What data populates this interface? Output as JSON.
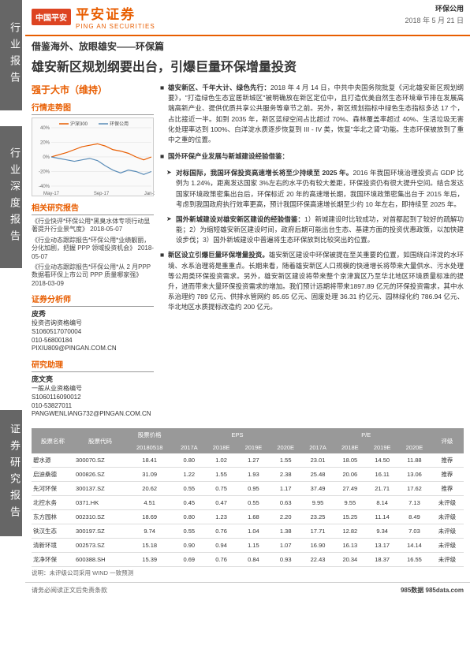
{
  "header": {
    "logo_red": "中国平安",
    "logo_cn": "平安证券",
    "logo_en": "PING AN SECURITIES",
    "category": "环保公用",
    "date": "2018 年 5 月 21 日"
  },
  "sidebar": {
    "s1": "行业报告",
    "s2": "行业深度报告",
    "s3": "证券研究报告"
  },
  "title": {
    "sub": "借鉴海外、放眼雄安——环保篇",
    "main": "雄安新区规划纲要出台，引爆巨量环保增量投资"
  },
  "left": {
    "rating": "强于大市（维持）",
    "chart_h": "行情走势图",
    "chart": {
      "series": [
        "沪深300",
        "环保公用"
      ],
      "colors": [
        "#e85d00",
        "#5b8db8"
      ],
      "months": [
        "May-17",
        "Sep-17",
        "Jan-18"
      ],
      "ylim": [
        -40,
        40
      ],
      "yticks": [
        -40,
        -20,
        0,
        20,
        40
      ],
      "hs300": [
        0,
        3,
        6,
        10,
        14,
        16,
        18,
        15,
        10,
        8,
        5,
        0,
        -4,
        0
      ],
      "env": [
        0,
        -2,
        -4,
        -6,
        -4,
        -2,
        -5,
        -12,
        -18,
        -22,
        -18,
        -20,
        -24,
        -20
      ]
    },
    "reports_h": "相关研究报告",
    "reports": [
      "《行业快评*环保公用*黑臭水体专项行动显著提升行业景气度》  2018-05-07",
      "《行业动态跟踪报告*环保公用*业绩靓丽，分化加剧，把握 PPP 领域投资机会》  2018-05-07",
      "《行业动态跟踪报告*环保公用*从 2 月PPP 数据看环保上市公司 PPP 质量哪家强》  2018-03-09"
    ],
    "analyst_h": "证券分析师",
    "analyst1": {
      "name": "皮秀",
      "lines": [
        "投资咨询资格编号",
        "S1060517070004",
        "010-56800184",
        "PIXIU809@PINGAN.COM.CN"
      ]
    },
    "assist_h": "研究助理",
    "analyst2": {
      "name": "庞文亮",
      "lines": [
        "一般从业资格编号",
        "S1060116090012",
        "010-53827011",
        "PANGWENLIANG732@PINGAN.COM.CN"
      ]
    }
  },
  "right": {
    "p1": {
      "b": "雄安新区、千年大计、绿色先行：",
      "t": "2018 年 4 月 14 日，中共中央国务院批复《河北雄安新区规划纲要》，\"打造绿色生态宜居新城区\"被明确放在新区定位中，且打造优美自然生态环境章节排在发展高端高新产业、提供优质共享公共服务等章节之前。另外，新区规划指标中绿色生态指标多达 17 个，占比接近一半。如到 2035 年，新区蓝绿空间占比超过 70%、森林覆盖率超过 40%、生活垃圾无害化处理率达到 100%、白洋淀水质逐步恢复到 III - IV 类，恢复\"华北之肾\"功能。生态环保被放到了重中之重的位置。"
    },
    "p2": {
      "b": "国外环保产业发展与新城建设经验借鉴："
    },
    "p2a": {
      "b": "对标国际，我国环保投资高速增长将至少持续至 2025 年。",
      "t": "2016 年我国环境治理投资占 GDP 比例为 1.24%，距离发达国家 3%左右的水平仍有较大差距，环保投资仍有很大提升空间。结合发达国家环境政策密集出台后，环保标近 20 年的高速增长期，我国环境政策密集出台于 2015 年后，考虑到我国政府执行效率更高，预计我国环保高速增长期至少约 10 年左右，即持续至 2025 年。"
    },
    "p2b": {
      "b": "国外新城建设对雄安新区建设的经验借鉴：",
      "t": "1）新城建设时比较成功，对首都起到了较好的疏解功能；2）为缩短雄安新区建设时间，政府后期可能出台生态、基建方面的投资优惠政策，以加快建设步伐；3）国外新城建设中普遍将生态环保放到比较突出的位置。"
    },
    "p3": {
      "b": "新区设立引爆巨量环保增量投资。",
      "t": "雄安新区建设中环保被提在至关重要的位置，如围绕白洋淀的水环境、水系治理将是重重点。长期来看，随着雄安新区人口规模的快速增长将带来大量供水、污水处理等公用类环保投资需求。另外，雄安新区建设将带来整个京津冀区乃至华北地区环境质量标准的提升，进而带来大量环保投资需求的增加。我们预计远期将带来1897.89 亿元的环保投资需求，其中水系治理约 789 亿元、供排水管网约 85.65 亿元、固废处理 36.31 约亿元、园林绿化约 786.94 亿元、华北地区水质提标改造约 200 亿元。"
    }
  },
  "table": {
    "headers": [
      "股票名称",
      "股票代码",
      "股票价格",
      "EPS",
      "",
      "",
      "",
      "P/E",
      "",
      "",
      "",
      "评级"
    ],
    "sub": [
      "",
      "",
      "20180518",
      "2017A",
      "2018E",
      "2019E",
      "2020E",
      "2017A",
      "2018E",
      "2019E",
      "2020E",
      ""
    ],
    "rows": [
      [
        "碧水源",
        "300070.SZ",
        "18.41",
        "0.80",
        "1.02",
        "1.27",
        "1.55",
        "23.01",
        "18.05",
        "14.50",
        "11.88",
        "推荐"
      ],
      [
        "启迪桑德",
        "000826.SZ",
        "31.09",
        "1.22",
        "1.55",
        "1.93",
        "2.38",
        "25.48",
        "20.06",
        "16.11",
        "13.06",
        "推荐"
      ],
      [
        "先河环保",
        "300137.SZ",
        "20.62",
        "0.55",
        "0.75",
        "0.95",
        "1.17",
        "37.49",
        "27.49",
        "21.71",
        "17.62",
        "推荐"
      ],
      [
        "北控水务",
        "0371.HK",
        "4.51",
        "0.45",
        "0.47",
        "0.55",
        "0.63",
        "9.95",
        "9.55",
        "8.14",
        "7.13",
        "未评级"
      ],
      [
        "东方园林",
        "002310.SZ",
        "18.69",
        "0.80",
        "1.23",
        "1.68",
        "2.20",
        "23.25",
        "15.25",
        "11.14",
        "8.49",
        "未评级"
      ],
      [
        "铁汉生态",
        "300197.SZ",
        "9.74",
        "0.55",
        "0.76",
        "1.04",
        "1.38",
        "17.71",
        "12.82",
        "9.34",
        "7.03",
        "未评级"
      ],
      [
        "清新环境",
        "002573.SZ",
        "15.18",
        "0.90",
        "0.94",
        "1.15",
        "1.07",
        "16.90",
        "16.13",
        "13.17",
        "14.14",
        "未评级"
      ],
      [
        "龙净环保",
        "600388.SH",
        "15.39",
        "0.69",
        "0.76",
        "0.84",
        "0.93",
        "22.43",
        "20.34",
        "18.37",
        "16.55",
        "未评级"
      ]
    ],
    "note": "说明：未评级公司采用 WIND 一致预测"
  },
  "footer": {
    "left": "请务必阅读正文后免责条款",
    "right": "985数据 985data.com"
  }
}
